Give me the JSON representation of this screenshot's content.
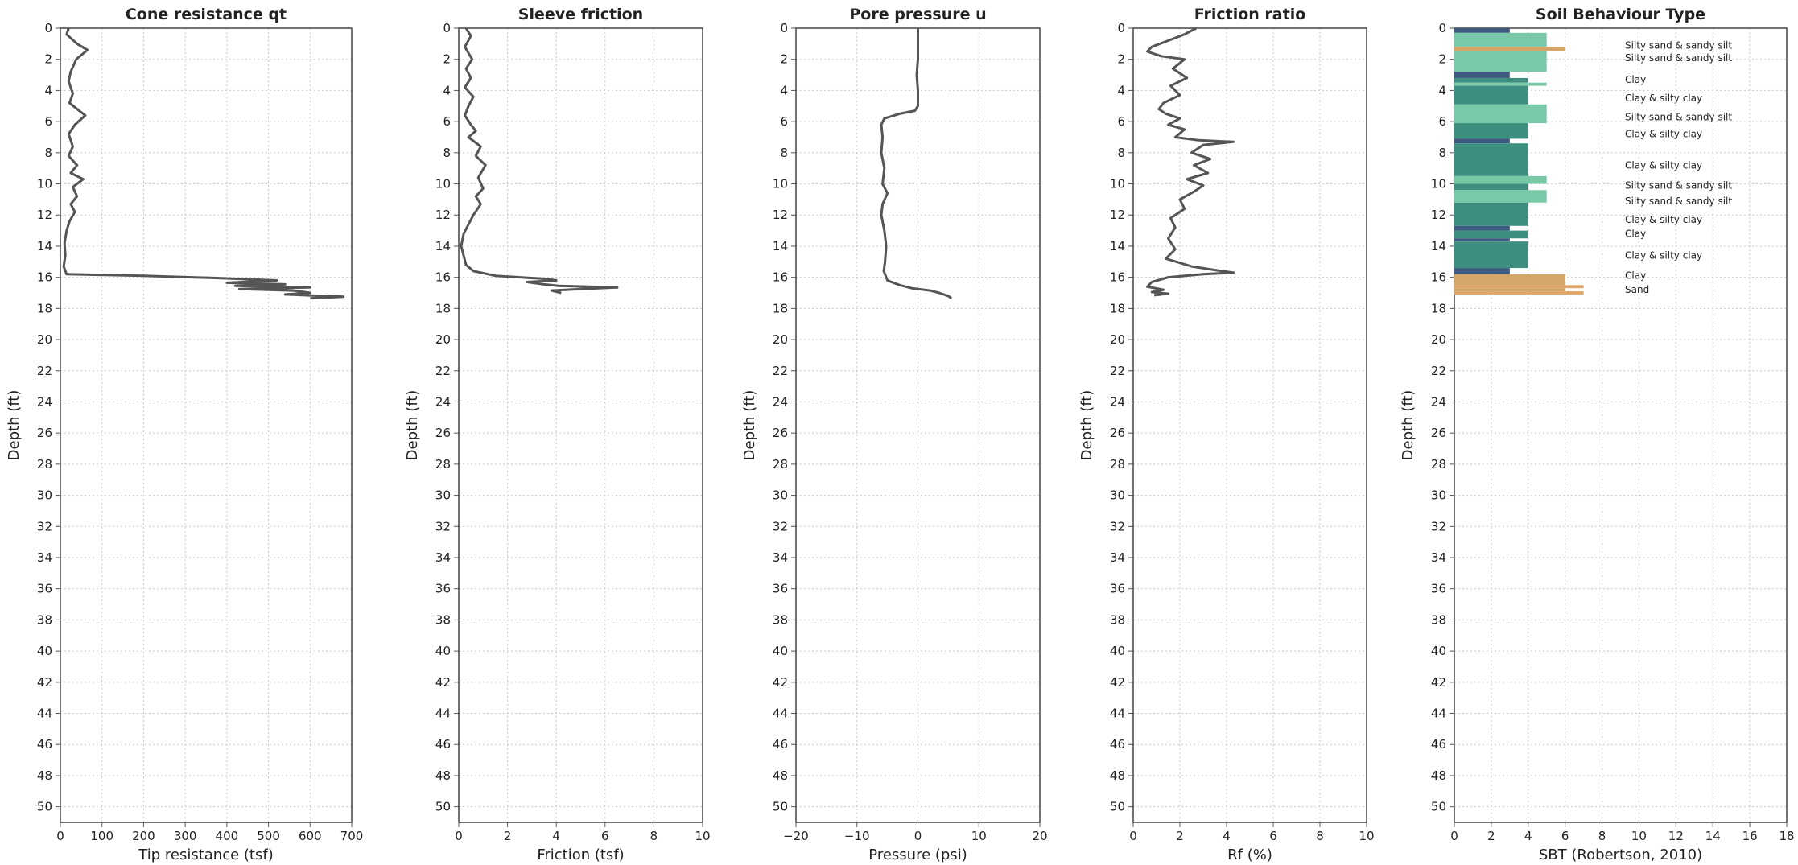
{
  "chart_data": [
    {
      "type": "line",
      "title": "Cone resistance qt",
      "xlabel": "Tip resistance (tsf)",
      "ylabel": "Depth (ft)",
      "xlim": [
        0,
        700
      ],
      "ylim": [
        0,
        51
      ],
      "x_ticks": [
        0,
        100,
        200,
        300,
        400,
        500,
        600,
        700
      ],
      "y_ticks": [
        0,
        2,
        4,
        6,
        8,
        10,
        12,
        14,
        16,
        18,
        20,
        22,
        24,
        26,
        28,
        30,
        32,
        34,
        36,
        38,
        40,
        42,
        44,
        46,
        48,
        50
      ],
      "grid": true,
      "series": [
        {
          "color": "#555555",
          "points": [
            [
              20,
              0
            ],
            [
              15,
              0.4
            ],
            [
              40,
              1
            ],
            [
              65,
              1.4
            ],
            [
              38,
              2
            ],
            [
              25,
              2.8
            ],
            [
              20,
              3.4
            ],
            [
              30,
              4.2
            ],
            [
              22,
              4.8
            ],
            [
              45,
              5.3
            ],
            [
              60,
              5.6
            ],
            [
              35,
              6.2
            ],
            [
              20,
              6.8
            ],
            [
              30,
              7.6
            ],
            [
              20,
              8.2
            ],
            [
              40,
              8.8
            ],
            [
              25,
              9.3
            ],
            [
              55,
              9.7
            ],
            [
              30,
              10.2
            ],
            [
              40,
              10.8
            ],
            [
              25,
              11.3
            ],
            [
              35,
              11.8
            ],
            [
              22,
              12.4
            ],
            [
              15,
              13
            ],
            [
              10,
              13.8
            ],
            [
              12,
              14.6
            ],
            [
              8,
              15.3
            ],
            [
              15,
              15.8
            ],
            [
              200,
              15.9
            ],
            [
              380,
              16.05
            ],
            [
              520,
              16.2
            ],
            [
              400,
              16.35
            ],
            [
              540,
              16.45
            ],
            [
              420,
              16.55
            ],
            [
              600,
              16.65
            ],
            [
              430,
              16.75
            ],
            [
              560,
              16.85
            ],
            [
              600,
              17
            ],
            [
              540,
              17.1
            ],
            [
              680,
              17.25
            ],
            [
              600,
              17.35
            ]
          ]
        }
      ]
    },
    {
      "type": "line",
      "title": "Sleeve friction",
      "xlabel": "Friction (tsf)",
      "ylabel": "Depth (ft)",
      "xlim": [
        0,
        10
      ],
      "ylim": [
        0,
        51
      ],
      "x_ticks": [
        0,
        2,
        4,
        6,
        8,
        10
      ],
      "y_ticks": [
        0,
        2,
        4,
        6,
        8,
        10,
        12,
        14,
        16,
        18,
        20,
        22,
        24,
        26,
        28,
        30,
        32,
        34,
        36,
        38,
        40,
        42,
        44,
        46,
        48,
        50
      ],
      "grid": true,
      "series": [
        {
          "color": "#555555",
          "points": [
            [
              0.3,
              0
            ],
            [
              0.5,
              0.5
            ],
            [
              0.25,
              1.2
            ],
            [
              0.55,
              2
            ],
            [
              0.3,
              2.6
            ],
            [
              0.5,
              3.2
            ],
            [
              0.25,
              3.8
            ],
            [
              0.6,
              4.4
            ],
            [
              0.4,
              5
            ],
            [
              0.25,
              5.6
            ],
            [
              0.5,
              6.2
            ],
            [
              0.7,
              6.6
            ],
            [
              0.4,
              7
            ],
            [
              0.9,
              7.6
            ],
            [
              0.7,
              8.2
            ],
            [
              1.1,
              8.8
            ],
            [
              0.8,
              9.6
            ],
            [
              1.0,
              10.3
            ],
            [
              0.7,
              10.8
            ],
            [
              0.9,
              11.3
            ],
            [
              0.6,
              12
            ],
            [
              0.4,
              12.6
            ],
            [
              0.2,
              13.2
            ],
            [
              0.1,
              14
            ],
            [
              0.2,
              14.6
            ],
            [
              0.3,
              15.2
            ],
            [
              0.6,
              15.6
            ],
            [
              1.5,
              15.9
            ],
            [
              2.5,
              16
            ],
            [
              3.6,
              16.1
            ],
            [
              4.0,
              16.2
            ],
            [
              2.8,
              16.3
            ],
            [
              3.5,
              16.45
            ],
            [
              4.1,
              16.55
            ],
            [
              6.5,
              16.65
            ],
            [
              5.0,
              16.75
            ],
            [
              3.8,
              16.85
            ],
            [
              4.2,
              17
            ]
          ]
        }
      ]
    },
    {
      "type": "line",
      "title": "Pore pressure u",
      "xlabel": "Pressure (psi)",
      "ylabel": "Depth (ft)",
      "xlim": [
        -20,
        20
      ],
      "ylim": [
        0,
        51
      ],
      "x_ticks": [
        -20,
        -10,
        0,
        10,
        20
      ],
      "y_ticks": [
        0,
        2,
        4,
        6,
        8,
        10,
        12,
        14,
        16,
        18,
        20,
        22,
        24,
        26,
        28,
        30,
        32,
        34,
        36,
        38,
        40,
        42,
        44,
        46,
        48,
        50
      ],
      "grid": true,
      "series": [
        {
          "color": "#555555",
          "points": [
            [
              0,
              0
            ],
            [
              0,
              1
            ],
            [
              0,
              2
            ],
            [
              -0.2,
              3
            ],
            [
              0,
              4
            ],
            [
              0,
              5
            ],
            [
              -0.5,
              5.3
            ],
            [
              -3,
              5.5
            ],
            [
              -5.5,
              5.8
            ],
            [
              -6,
              6.2
            ],
            [
              -5.8,
              7
            ],
            [
              -6,
              8
            ],
            [
              -5.5,
              9
            ],
            [
              -5.8,
              10
            ],
            [
              -5,
              10.6
            ],
            [
              -5.8,
              11.3
            ],
            [
              -6,
              12
            ],
            [
              -5.5,
              13
            ],
            [
              -5.2,
              14
            ],
            [
              -5.4,
              15
            ],
            [
              -5.6,
              15.6
            ],
            [
              -5,
              16.2
            ],
            [
              -3,
              16.5
            ],
            [
              -1,
              16.7
            ],
            [
              1,
              16.8
            ],
            [
              2,
              16.85
            ],
            [
              3.5,
              17
            ],
            [
              5,
              17.2
            ],
            [
              5.5,
              17.35
            ]
          ]
        }
      ]
    },
    {
      "type": "line",
      "title": "Friction ratio",
      "xlabel": "Rf (%)",
      "ylabel": "Depth (ft)",
      "xlim": [
        0,
        10
      ],
      "ylim": [
        0,
        51
      ],
      "x_ticks": [
        0,
        2,
        4,
        6,
        8,
        10
      ],
      "y_ticks": [
        0,
        2,
        4,
        6,
        8,
        10,
        12,
        14,
        16,
        18,
        20,
        22,
        24,
        26,
        28,
        30,
        32,
        34,
        36,
        38,
        40,
        42,
        44,
        46,
        48,
        50
      ],
      "grid": true,
      "series": [
        {
          "color": "#555555",
          "points": [
            [
              2.7,
              0
            ],
            [
              2.2,
              0.4
            ],
            [
              1.5,
              0.8
            ],
            [
              0.8,
              1.2
            ],
            [
              0.6,
              1.5
            ],
            [
              1.2,
              1.8
            ],
            [
              2.2,
              2
            ],
            [
              1.7,
              2.6
            ],
            [
              2.3,
              3.2
            ],
            [
              1.6,
              3.7
            ],
            [
              2.0,
              4.3
            ],
            [
              1.3,
              4.8
            ],
            [
              1.1,
              5.2
            ],
            [
              1.4,
              5.5
            ],
            [
              2.0,
              5.8
            ],
            [
              1.5,
              6.2
            ],
            [
              2.2,
              6.5
            ],
            [
              1.8,
              7
            ],
            [
              2.8,
              7.2
            ],
            [
              4.3,
              7.3
            ],
            [
              3.0,
              7.5
            ],
            [
              2.5,
              8
            ],
            [
              3.3,
              8.4
            ],
            [
              2.6,
              8.8
            ],
            [
              3.2,
              9.3
            ],
            [
              2.3,
              9.7
            ],
            [
              3.0,
              10.1
            ],
            [
              2.6,
              10.5
            ],
            [
              2.0,
              11
            ],
            [
              2.2,
              11.6
            ],
            [
              1.6,
              12.2
            ],
            [
              1.8,
              12.8
            ],
            [
              1.5,
              13.5
            ],
            [
              1.8,
              14.2
            ],
            [
              1.4,
              14.8
            ],
            [
              2.5,
              15.3
            ],
            [
              3.8,
              15.6
            ],
            [
              4.3,
              15.7
            ],
            [
              3.0,
              15.8
            ],
            [
              1.5,
              16
            ],
            [
              0.8,
              16.3
            ],
            [
              0.6,
              16.6
            ],
            [
              1.3,
              16.8
            ],
            [
              0.8,
              16.95
            ],
            [
              1.5,
              17.05
            ],
            [
              0.9,
              17.15
            ]
          ]
        }
      ]
    },
    {
      "type": "bar",
      "title": "Soil Behaviour Type",
      "xlabel": "SBT (Robertson, 2010)",
      "ylabel": "Depth (ft)",
      "xlim": [
        0,
        18
      ],
      "ylim": [
        0,
        51
      ],
      "x_ticks": [
        0,
        2,
        4,
        6,
        8,
        10,
        12,
        14,
        16,
        18
      ],
      "y_ticks": [
        0,
        2,
        4,
        6,
        8,
        10,
        12,
        14,
        16,
        18,
        20,
        22,
        24,
        26,
        28,
        30,
        32,
        34,
        36,
        38,
        40,
        42,
        44,
        46,
        48,
        50
      ],
      "grid": true,
      "colors": {
        "sbt3": "#3f5a80",
        "sbt4": "#3d8f80",
        "sbt5": "#78c9a8",
        "sbt6": "#d4a667",
        "sbt7": "#e0a668"
      },
      "layers": [
        {
          "top": 0,
          "bottom": 0.3,
          "sbt": 3
        },
        {
          "top": 0.3,
          "bottom": 1.2,
          "sbt": 5
        },
        {
          "top": 1.2,
          "bottom": 1.5,
          "sbt": 6
        },
        {
          "top": 1.5,
          "bottom": 2.8,
          "sbt": 5
        },
        {
          "top": 2.8,
          "bottom": 3.2,
          "sbt": 3
        },
        {
          "top": 3.2,
          "bottom": 3.5,
          "sbt": 4
        },
        {
          "top": 3.5,
          "bottom": 3.7,
          "sbt": 5
        },
        {
          "top": 3.7,
          "bottom": 4.9,
          "sbt": 4
        },
        {
          "top": 4.9,
          "bottom": 6.1,
          "sbt": 5
        },
        {
          "top": 6.1,
          "bottom": 7.1,
          "sbt": 4
        },
        {
          "top": 7.1,
          "bottom": 7.4,
          "sbt": 3
        },
        {
          "top": 7.4,
          "bottom": 9.5,
          "sbt": 4
        },
        {
          "top": 9.5,
          "bottom": 10,
          "sbt": 5
        },
        {
          "top": 10,
          "bottom": 10.4,
          "sbt": 4
        },
        {
          "top": 10.4,
          "bottom": 11.2,
          "sbt": 5
        },
        {
          "top": 11.2,
          "bottom": 12.7,
          "sbt": 4
        },
        {
          "top": 12.7,
          "bottom": 13,
          "sbt": 3
        },
        {
          "top": 13,
          "bottom": 13.5,
          "sbt": 4
        },
        {
          "top": 13.5,
          "bottom": 13.7,
          "sbt": 3
        },
        {
          "top": 13.7,
          "bottom": 15.4,
          "sbt": 4
        },
        {
          "top": 15.4,
          "bottom": 15.8,
          "sbt": 3
        },
        {
          "top": 15.8,
          "bottom": 16.5,
          "sbt": 6
        },
        {
          "top": 16.5,
          "bottom": 16.7,
          "sbt": 7
        },
        {
          "top": 16.7,
          "bottom": 16.9,
          "sbt": 6
        },
        {
          "top": 16.9,
          "bottom": 17.1,
          "sbt": 7
        }
      ],
      "annotations": [
        {
          "text": "Silty sand & sandy silt",
          "depth": 1.1
        },
        {
          "text": "Silty sand & sandy silt",
          "depth": 1.9
        },
        {
          "text": "Clay",
          "depth": 3.3
        },
        {
          "text": "Clay & silty clay",
          "depth": 4.5
        },
        {
          "text": "Silty sand & sandy silt",
          "depth": 5.7
        },
        {
          "text": "Clay & silty clay",
          "depth": 6.8
        },
        {
          "text": "Clay & silty clay",
          "depth": 8.8
        },
        {
          "text": "Silty sand & sandy silt",
          "depth": 10.1
        },
        {
          "text": "Silty sand & sandy silt",
          "depth": 11.1
        },
        {
          "text": "Clay & silty clay",
          "depth": 12.3
        },
        {
          "text": "Clay",
          "depth": 13.2
        },
        {
          "text": "Clay & silty clay",
          "depth": 14.6
        },
        {
          "text": "Clay",
          "depth": 15.9
        },
        {
          "text": "Sand",
          "depth": 16.8
        }
      ]
    }
  ]
}
